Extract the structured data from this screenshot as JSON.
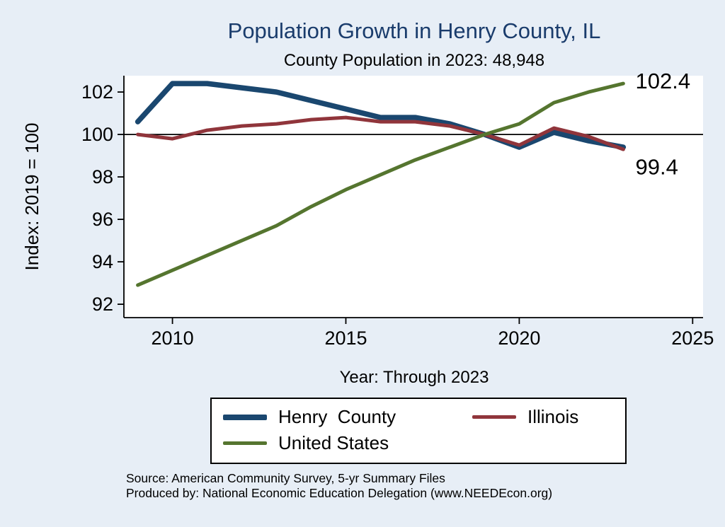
{
  "colors": {
    "background": "#e7eef6",
    "title": "#1a3c6c",
    "henry_county": "#1a476f",
    "illinois": "#90353b",
    "united_states": "#55752f",
    "reference_line": "#000000"
  },
  "chart_data": {
    "type": "line",
    "title": "Population Growth in Henry County, IL",
    "subtitle": "County Population in 2023: 48,948",
    "xlabel": "Year: Through 2023",
    "ylabel": "Index: 2019 = 100",
    "x": [
      2009,
      2010,
      2011,
      2012,
      2013,
      2014,
      2015,
      2016,
      2017,
      2018,
      2019,
      2020,
      2021,
      2022,
      2023
    ],
    "x_ticks": [
      2010,
      2015,
      2020,
      2025
    ],
    "y_ticks": [
      92,
      94,
      96,
      98,
      100,
      102
    ],
    "xlim": [
      2008.6,
      2025.3
    ],
    "ylim": [
      91.37,
      102.77
    ],
    "ref_line_y": 100,
    "grid": false,
    "legend_position": "bottom",
    "series": [
      {
        "name": "Henry County",
        "color": "#1a476f",
        "line_width": 7.5,
        "values": [
          100.6,
          102.4,
          102.4,
          102.2,
          102.0,
          101.6,
          101.2,
          100.8,
          100.8,
          100.5,
          100.0,
          99.4,
          100.1,
          99.7,
          99.4
        ]
      },
      {
        "name": "Illinois",
        "color": "#90353b",
        "line_width": 5,
        "values": [
          100.0,
          99.8,
          100.2,
          100.4,
          100.5,
          100.7,
          100.8,
          100.6,
          100.6,
          100.4,
          100.0,
          99.5,
          100.3,
          99.9,
          99.3
        ]
      },
      {
        "name": "United States",
        "color": "#55752f",
        "line_width": 5,
        "values": [
          92.9,
          93.6,
          94.3,
          95.0,
          95.7,
          96.6,
          97.4,
          98.1,
          98.8,
          99.4,
          100.0,
          100.5,
          101.5,
          102.0,
          102.4
        ]
      }
    ],
    "annotations": [
      {
        "text": "102.4",
        "x": 2023.35,
        "y": 102.5
      },
      {
        "text": "99.4",
        "x": 2023.35,
        "y": 98.45
      }
    ]
  },
  "legend": {
    "items": [
      {
        "label": "Henry  County",
        "color": "#1a476f",
        "line_width": 8
      },
      {
        "label": "Illinois",
        "color": "#90353b",
        "line_width": 5
      },
      {
        "label": "United States",
        "color": "#55752f",
        "line_width": 5
      }
    ]
  },
  "footer": {
    "lines": [
      "Source: American Community Survey, 5-yr Summary Files",
      "Produced by: National Economic Education Delegation (www.NEEDEcon.org)"
    ]
  }
}
